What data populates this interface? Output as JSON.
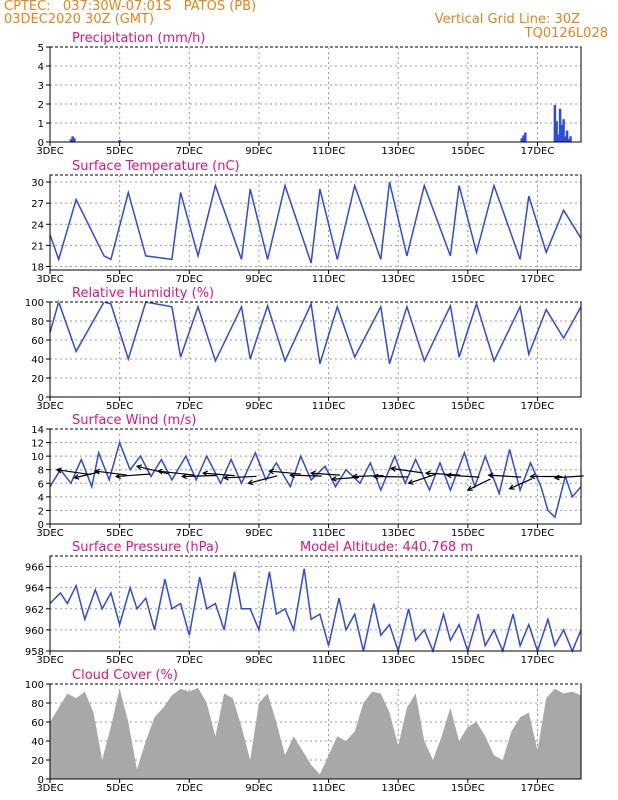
{
  "header": {
    "line1": "CPTEC:   037:30W-07:01S   PATOS (PB)",
    "line2": "03DEC2020 30Z (GMT)",
    "vgrid": "Vertical Grid Line: 30Z",
    "code": "TQ0126L028",
    "color": "#e8821c"
  },
  "colors": {
    "line": "#2f4bdc",
    "title": "#e0157a",
    "cloud": "#a8a8a8"
  },
  "x_ticks": [
    "3DEC",
    "5DEC",
    "7DEC",
    "9DEC",
    "11DEC",
    "13DEC",
    "15DEC",
    "17DEC"
  ],
  "x_range_days": [
    3,
    18.25
  ],
  "chart_data": [
    {
      "id": "precip",
      "type": "bar",
      "title": "Precipitation (mm/h)",
      "ylim": [
        0,
        5
      ],
      "yticks": [
        0,
        1,
        2,
        3,
        4,
        5
      ],
      "x": [
        3.6,
        3.65,
        3.7,
        5.0,
        16.55,
        16.6,
        16.65,
        17.5,
        17.55,
        17.6,
        17.65,
        17.7,
        17.75,
        17.8,
        17.85,
        17.9,
        17.95
      ],
      "values": [
        0.15,
        0.3,
        0.2,
        0.1,
        0.2,
        0.35,
        0.5,
        1.95,
        1.1,
        0.4,
        1.75,
        0.9,
        1.2,
        0.3,
        0.6,
        0.15,
        0.3
      ]
    },
    {
      "id": "temp",
      "type": "line",
      "title": "Surface Temperature (nC)",
      "ylim": [
        17.5,
        31
      ],
      "yticks": [
        18,
        21,
        24,
        27,
        30
      ],
      "x": [
        3.0,
        3.25,
        3.75,
        4.55,
        4.75,
        5.25,
        5.75,
        6.5,
        6.75,
        7.25,
        7.75,
        8.5,
        8.75,
        9.25,
        9.75,
        10.5,
        10.75,
        11.25,
        11.75,
        12.5,
        12.75,
        13.25,
        13.75,
        14.5,
        14.75,
        15.25,
        15.75,
        16.5,
        16.75,
        17.25,
        17.75,
        18.25
      ],
      "values": [
        22.5,
        19.0,
        27.5,
        19.5,
        19.0,
        28.5,
        19.5,
        19.0,
        28.5,
        19.5,
        29.5,
        19.0,
        29.0,
        19.0,
        29.5,
        18.5,
        29.0,
        19.0,
        29.5,
        19.0,
        30.0,
        19.5,
        29.5,
        19.5,
        29.5,
        20.0,
        29.5,
        19.0,
        28.0,
        20.0,
        26.0,
        22.0
      ]
    },
    {
      "id": "rh",
      "type": "line",
      "title": "Relative Humidity (%)",
      "ylim": [
        0,
        100
      ],
      "yticks": [
        0,
        20,
        40,
        60,
        80,
        100
      ],
      "x": [
        3.0,
        3.25,
        3.75,
        4.55,
        4.75,
        5.25,
        5.75,
        6.5,
        6.75,
        7.25,
        7.75,
        8.5,
        8.75,
        9.25,
        9.75,
        10.5,
        10.75,
        11.25,
        11.75,
        12.5,
        12.75,
        13.25,
        13.75,
        14.5,
        14.75,
        15.25,
        15.75,
        16.5,
        16.75,
        17.25,
        17.75,
        18.25
      ],
      "values": [
        68,
        100,
        48,
        100,
        98,
        40,
        100,
        95,
        42,
        95,
        38,
        95,
        40,
        96,
        38,
        98,
        35,
        95,
        42,
        95,
        35,
        95,
        38,
        96,
        42,
        98,
        38,
        95,
        45,
        92,
        62,
        95
      ]
    },
    {
      "id": "wind",
      "type": "line",
      "title": "Surface Wind (m/s)",
      "ylim": [
        0,
        14
      ],
      "yticks": [
        0,
        2,
        4,
        6,
        8,
        10,
        12,
        14
      ],
      "x": [
        3.0,
        3.3,
        3.6,
        3.9,
        4.2,
        4.4,
        4.7,
        5.0,
        5.3,
        5.6,
        5.9,
        6.2,
        6.5,
        6.9,
        7.2,
        7.5,
        7.9,
        8.2,
        8.5,
        8.9,
        9.2,
        9.5,
        9.9,
        10.2,
        10.5,
        10.9,
        11.2,
        11.5,
        11.9,
        12.2,
        12.5,
        12.9,
        13.2,
        13.5,
        13.9,
        14.2,
        14.5,
        14.9,
        15.2,
        15.5,
        15.9,
        16.2,
        16.5,
        16.8,
        17.1,
        17.3,
        17.5,
        17.8,
        18.0,
        18.25
      ],
      "values": [
        5.5,
        8.0,
        6.0,
        9.5,
        5.5,
        10.5,
        6.5,
        12.0,
        8.0,
        10.0,
        7.0,
        9.5,
        6.5,
        10.0,
        6.5,
        10.0,
        6.0,
        9.5,
        6.0,
        10.5,
        6.5,
        9.0,
        5.5,
        10.0,
        6.5,
        8.5,
        5.5,
        8.0,
        6.0,
        9.0,
        5.0,
        10.0,
        6.0,
        9.5,
        5.0,
        9.0,
        5.0,
        10.5,
        5.5,
        10.0,
        4.5,
        11.0,
        5.0,
        9.0,
        5.5,
        2.0,
        1.0,
        7.0,
        4.0,
        5.5
      ],
      "arrows": [
        {
          "x": 3.2,
          "y": 8.0,
          "dx": 3.8,
          "dy": -1.0
        },
        {
          "x": 3.7,
          "y": 6.8,
          "dx": 2.8,
          "dy": 1.2
        },
        {
          "x": 4.3,
          "y": 7.8,
          "dx": 3.5,
          "dy": -0.8
        },
        {
          "x": 4.9,
          "y": 7.0,
          "dx": 3.8,
          "dy": 0.5
        },
        {
          "x": 5.5,
          "y": 8.5,
          "dx": 3.5,
          "dy": -1.5
        },
        {
          "x": 6.1,
          "y": 7.8,
          "dx": 4.0,
          "dy": -0.8
        },
        {
          "x": 6.8,
          "y": 7.0,
          "dx": 3.8,
          "dy": 0.2
        },
        {
          "x": 7.4,
          "y": 7.5,
          "dx": 3.5,
          "dy": -0.5
        },
        {
          "x": 8.0,
          "y": 6.8,
          "dx": 3.6,
          "dy": 0.3
        },
        {
          "x": 8.7,
          "y": 6.0,
          "dx": 3.2,
          "dy": 1.5
        },
        {
          "x": 9.3,
          "y": 7.8,
          "dx": 3.5,
          "dy": -0.6
        },
        {
          "x": 9.9,
          "y": 7.2,
          "dx": 3.5,
          "dy": -0.2
        },
        {
          "x": 10.5,
          "y": 7.5,
          "dx": 3.2,
          "dy": -0.4
        },
        {
          "x": 11.1,
          "y": 6.6,
          "dx": 3.0,
          "dy": 0.4
        },
        {
          "x": 11.7,
          "y": 7.0,
          "dx": 3.4,
          "dy": 0.2
        },
        {
          "x": 12.3,
          "y": 7.0,
          "dx": 3.8,
          "dy": -0.1
        },
        {
          "x": 12.8,
          "y": 8.2,
          "dx": 3.5,
          "dy": -0.9
        },
        {
          "x": 13.3,
          "y": 6.0,
          "dx": 3.0,
          "dy": 1.8
        },
        {
          "x": 13.8,
          "y": 7.5,
          "dx": 3.8,
          "dy": -0.4
        },
        {
          "x": 14.4,
          "y": 7.2,
          "dx": 3.6,
          "dy": -0.4
        },
        {
          "x": 15.0,
          "y": 5.0,
          "dx": 2.5,
          "dy": 2.2
        },
        {
          "x": 15.6,
          "y": 7.2,
          "dx": 3.6,
          "dy": -0.4
        },
        {
          "x": 16.2,
          "y": 5.2,
          "dx": 2.5,
          "dy": 2.0
        },
        {
          "x": 16.8,
          "y": 7.0,
          "dx": 3.5,
          "dy": 0.0
        },
        {
          "x": 17.5,
          "y": 6.8,
          "dx": 3.2,
          "dy": 0.4
        }
      ]
    },
    {
      "id": "pres",
      "type": "line",
      "title": "Surface Pressure (hPa)",
      "subtitle": "Model Altitude: 440.768  m",
      "ylim": [
        958,
        967
      ],
      "yticks": [
        958,
        960,
        962,
        964,
        966
      ],
      "x": [
        3.0,
        3.3,
        3.5,
        3.75,
        4.0,
        4.3,
        4.5,
        4.75,
        5.0,
        5.3,
        5.5,
        5.75,
        6.0,
        6.3,
        6.5,
        6.75,
        7.0,
        7.3,
        7.5,
        7.75,
        8.0,
        8.3,
        8.5,
        8.75,
        9.0,
        9.3,
        9.5,
        9.75,
        10.0,
        10.3,
        10.5,
        10.75,
        11.0,
        11.3,
        11.5,
        11.75,
        12.0,
        12.3,
        12.5,
        12.75,
        13.0,
        13.3,
        13.5,
        13.75,
        14.0,
        14.3,
        14.5,
        14.75,
        15.0,
        15.3,
        15.5,
        15.75,
        16.0,
        16.3,
        16.5,
        16.75,
        17.0,
        17.3,
        17.5,
        17.75,
        18.0,
        18.25
      ],
      "values": [
        962.5,
        963.5,
        962.5,
        964.2,
        961.0,
        963.8,
        962.0,
        963.5,
        960.5,
        964.0,
        962.0,
        963.0,
        960.0,
        964.8,
        962.0,
        962.5,
        959.5,
        965.0,
        962.0,
        962.5,
        960.0,
        965.5,
        962.0,
        962.0,
        960.0,
        965.5,
        961.5,
        962.0,
        960.0,
        965.8,
        961.0,
        961.5,
        958.5,
        963.0,
        960.0,
        961.5,
        958.0,
        962.5,
        959.5,
        960.5,
        958.0,
        962.0,
        959.0,
        960.0,
        958.0,
        961.5,
        959.0,
        960.5,
        958.0,
        961.5,
        958.5,
        960.0,
        958.0,
        961.5,
        958.5,
        960.5,
        958.0,
        961.0,
        958.5,
        960.0,
        958.0,
        960.0
      ]
    },
    {
      "id": "cloud",
      "type": "area",
      "title": "Cloud Cover (%)",
      "ylim": [
        0,
        100
      ],
      "yticks": [
        0,
        20,
        40,
        60,
        80,
        100
      ],
      "x": [
        3.0,
        3.25,
        3.5,
        3.75,
        4.0,
        4.25,
        4.5,
        4.75,
        5.0,
        5.25,
        5.5,
        5.75,
        6.0,
        6.25,
        6.5,
        6.75,
        7.0,
        7.25,
        7.5,
        7.75,
        8.0,
        8.25,
        8.5,
        8.75,
        9.0,
        9.25,
        9.5,
        9.75,
        10.0,
        10.25,
        10.5,
        10.75,
        11.0,
        11.25,
        11.5,
        11.75,
        12.0,
        12.25,
        12.5,
        12.75,
        13.0,
        13.25,
        13.5,
        13.75,
        14.0,
        14.25,
        14.5,
        14.75,
        15.0,
        15.25,
        15.5,
        15.75,
        16.0,
        16.25,
        16.5,
        16.75,
        17.0,
        17.25,
        17.5,
        17.75,
        18.0,
        18.25
      ],
      "values": [
        60,
        75,
        90,
        85,
        92,
        70,
        20,
        55,
        95,
        60,
        10,
        40,
        65,
        75,
        88,
        95,
        92,
        96,
        80,
        45,
        90,
        85,
        55,
        20,
        80,
        90,
        60,
        25,
        45,
        30,
        15,
        5,
        25,
        45,
        40,
        50,
        80,
        92,
        90,
        70,
        35,
        75,
        90,
        40,
        20,
        45,
        75,
        40,
        55,
        60,
        45,
        25,
        20,
        50,
        65,
        70,
        30,
        85,
        95,
        90,
        92,
        88
      ]
    }
  ]
}
